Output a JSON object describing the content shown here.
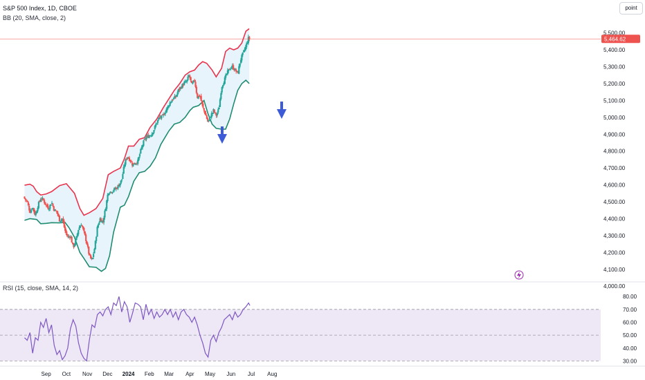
{
  "legend": {
    "main": "S&P 500 Index, 1D, CBOE",
    "bb": "BB (20, SMA, close, 2)",
    "rsi": "RSI (15, close, SMA, 14, 2)"
  },
  "mode_button": "point",
  "colors": {
    "up": "#26a69a",
    "down": "#ef5350",
    "bb_upper": "#e8344e",
    "bb_lower": "#1f8b70",
    "bb_fill": "#e8f4fb",
    "rsi_line": "#7e57c2",
    "rsi_band": "#ede7f6",
    "arrow": "#3d5bd6",
    "price_tag": "#ef5350",
    "bolt": "#9c27b0"
  },
  "chart_data": [
    {
      "type": "candlestick",
      "title": "S&P 500 Index, 1D, CBOE",
      "indicator": "BB (20, SMA, close, 2)",
      "ylim": [
        4050,
        5560
      ],
      "y_ticks": [
        "5,500.00",
        "5,400.00",
        "5,300.00",
        "5,200.00",
        "5,100.00",
        "5,000.00",
        "4,900.00",
        "4,800.00",
        "4,700.00",
        "4,600.00",
        "4,500.00",
        "4,400.00",
        "4,300.00",
        "4,200.00",
        "4,100.00",
        "4,000.00"
      ],
      "y_tick_values": [
        5500,
        5400,
        5300,
        5200,
        5100,
        5000,
        4900,
        4800,
        4700,
        4600,
        4500,
        4400,
        4300,
        4200,
        4100,
        4000
      ],
      "x_ticks": [
        "Sep",
        "Oct",
        "Nov",
        "Dec",
        "2024",
        "Feb",
        "Mar",
        "Apr",
        "May",
        "Jun",
        "Jul",
        "Aug"
      ],
      "x_tick_days": [
        14,
        44,
        75,
        105,
        136,
        167,
        196,
        227,
        257,
        288,
        318,
        349
      ],
      "last_price": "5,464.62",
      "last_price_value": 5464.62,
      "series": [
        {
          "name": "upper",
          "points": [
            [
              -18,
              4598
            ],
            [
              -10,
              4604
            ],
            [
              -5,
              4592
            ],
            [
              0,
              4560
            ],
            [
              6,
              4540
            ],
            [
              14,
              4546
            ],
            [
              22,
              4560
            ],
            [
              34,
              4596
            ],
            [
              44,
              4607
            ],
            [
              56,
              4550
            ],
            [
              64,
              4460
            ],
            [
              70,
              4420
            ],
            [
              78,
              4435
            ],
            [
              88,
              4460
            ],
            [
              98,
              4520
            ],
            [
              106,
              4660
            ],
            [
              114,
              4680
            ],
            [
              124,
              4700
            ],
            [
              130,
              4755
            ],
            [
              136,
              4830
            ],
            [
              144,
              4830
            ],
            [
              152,
              4870
            ],
            [
              160,
              4880
            ],
            [
              168,
              4940
            ],
            [
              178,
              4990
            ],
            [
              188,
              5060
            ],
            [
              196,
              5110
            ],
            [
              204,
              5160
            ],
            [
              212,
              5200
            ],
            [
              220,
              5250
            ],
            [
              227,
              5270
            ],
            [
              234,
              5280
            ],
            [
              240,
              5310
            ],
            [
              246,
              5330
            ],
            [
              252,
              5320
            ],
            [
              260,
              5280
            ],
            [
              266,
              5240
            ],
            [
              274,
              5290
            ],
            [
              280,
              5390
            ],
            [
              286,
              5410
            ],
            [
              292,
              5400
            ],
            [
              298,
              5410
            ],
            [
              304,
              5440
            ],
            [
              310,
              5510
            ],
            [
              315,
              5525
            ]
          ]
        },
        {
          "name": "lower",
          "points": [
            [
              -18,
              4390
            ],
            [
              -10,
              4400
            ],
            [
              0,
              4395
            ],
            [
              6,
              4370
            ],
            [
              14,
              4372
            ],
            [
              22,
              4376
            ],
            [
              34,
              4375
            ],
            [
              42,
              4378
            ],
            [
              48,
              4346
            ],
            [
              56,
              4290
            ],
            [
              64,
              4200
            ],
            [
              70,
              4165
            ],
            [
              78,
              4115
            ],
            [
              88,
              4112
            ],
            [
              96,
              4088
            ],
            [
              102,
              4105
            ],
            [
              108,
              4180
            ],
            [
              114,
              4320
            ],
            [
              124,
              4468
            ],
            [
              130,
              4480
            ],
            [
              136,
              4530
            ],
            [
              144,
              4622
            ],
            [
              152,
              4672
            ],
            [
              160,
              4680
            ],
            [
              168,
              4710
            ],
            [
              176,
              4760
            ],
            [
              184,
              4840
            ],
            [
              190,
              4880
            ],
            [
              196,
              4920
            ],
            [
              204,
              4960
            ],
            [
              212,
              4970
            ],
            [
              220,
              5000
            ],
            [
              227,
              5040
            ],
            [
              232,
              5060
            ],
            [
              240,
              5070
            ],
            [
              248,
              5100
            ],
            [
              254,
              5020
            ],
            [
              260,
              4960
            ],
            [
              266,
              4935
            ],
            [
              274,
              4930
            ],
            [
              280,
              4930
            ],
            [
              286,
              4990
            ],
            [
              292,
              5080
            ],
            [
              298,
              5160
            ],
            [
              304,
              5200
            ],
            [
              310,
              5220
            ],
            [
              315,
              5200
            ]
          ]
        },
        {
          "name": "close",
          "points": [
            [
              -18,
              4520
            ],
            [
              -14,
              4500
            ],
            [
              -10,
              4440
            ],
            [
              -6,
              4470
            ],
            [
              -2,
              4420
            ],
            [
              2,
              4480
            ],
            [
              6,
              4520
            ],
            [
              10,
              4510
            ],
            [
              14,
              4480
            ],
            [
              18,
              4460
            ],
            [
              22,
              4500
            ],
            [
              26,
              4450
            ],
            [
              30,
              4440
            ],
            [
              34,
              4390
            ],
            [
              38,
              4400
            ],
            [
              42,
              4330
            ],
            [
              46,
              4290
            ],
            [
              50,
              4300
            ],
            [
              54,
              4230
            ],
            [
              58,
              4270
            ],
            [
              62,
              4340
            ],
            [
              66,
              4370
            ],
            [
              70,
              4320
            ],
            [
              74,
              4260
            ],
            [
              78,
              4180
            ],
            [
              82,
              4150
            ],
            [
              86,
              4230
            ],
            [
              90,
              4350
            ],
            [
              94,
              4400
            ],
            [
              98,
              4380
            ],
            [
              102,
              4460
            ],
            [
              106,
              4560
            ],
            [
              110,
              4560
            ],
            [
              114,
              4570
            ],
            [
              118,
              4580
            ],
            [
              122,
              4600
            ],
            [
              126,
              4630
            ],
            [
              130,
              4720
            ],
            [
              134,
              4770
            ],
            [
              138,
              4750
            ],
            [
              142,
              4720
            ],
            [
              146,
              4730
            ],
            [
              150,
              4740
            ],
            [
              154,
              4800
            ],
            [
              158,
              4850
            ],
            [
              162,
              4880
            ],
            [
              166,
              4890
            ],
            [
              170,
              4900
            ],
            [
              174,
              4930
            ],
            [
              178,
              4970
            ],
            [
              182,
              5000
            ],
            [
              186,
              5000
            ],
            [
              190,
              5030
            ],
            [
              194,
              5060
            ],
            [
              198,
              5090
            ],
            [
              202,
              5110
            ],
            [
              206,
              5120
            ],
            [
              210,
              5160
            ],
            [
              214,
              5180
            ],
            [
              218,
              5200
            ],
            [
              222,
              5210
            ],
            [
              226,
              5250
            ],
            [
              230,
              5190
            ],
            [
              234,
              5220
            ],
            [
              238,
              5120
            ],
            [
              242,
              5130
            ],
            [
              246,
              5060
            ],
            [
              250,
              5020
            ],
            [
              254,
              4970
            ],
            [
              258,
              5010
            ],
            [
              262,
              5040
            ],
            [
              266,
              5010
            ],
            [
              270,
              5050
            ],
            [
              274,
              5180
            ],
            [
              278,
              5220
            ],
            [
              282,
              5260
            ],
            [
              286,
              5290
            ],
            [
              290,
              5300
            ],
            [
              294,
              5280
            ],
            [
              298,
              5260
            ],
            [
              302,
              5340
            ],
            [
              306,
              5380
            ],
            [
              310,
              5420
            ],
            [
              314,
              5470
            ],
            [
              316,
              5460
            ]
          ]
        }
      ]
    },
    {
      "type": "line",
      "title": "RSI (15, close, SMA, 14, 2)",
      "ylim": [
        27,
        86
      ],
      "y_ticks": [
        "80.00",
        "70.00",
        "60.00",
        "50.00",
        "40.00",
        "30.00"
      ],
      "y_tick_values": [
        80,
        70,
        60,
        50,
        40,
        30
      ],
      "band": [
        30,
        70
      ],
      "midline": 50,
      "series": [
        {
          "name": "RSI",
          "points": [
            [
              -18,
              48
            ],
            [
              -14,
              46
            ],
            [
              -10,
              52
            ],
            [
              -6,
              36
            ],
            [
              -2,
              48
            ],
            [
              2,
              46
            ],
            [
              6,
              60
            ],
            [
              10,
              56
            ],
            [
              14,
              63
            ],
            [
              18,
              52
            ],
            [
              22,
              58
            ],
            [
              26,
              42
            ],
            [
              30,
              35
            ],
            [
              34,
              38
            ],
            [
              38,
              31
            ],
            [
              42,
              34
            ],
            [
              46,
              40
            ],
            [
              50,
              55
            ],
            [
              54,
              62
            ],
            [
              58,
              57
            ],
            [
              62,
              44
            ],
            [
              66,
              36
            ],
            [
              70,
              32
            ],
            [
              74,
              30
            ],
            [
              78,
              46
            ],
            [
              82,
              58
            ],
            [
              86,
              56
            ],
            [
              90,
              66
            ],
            [
              94,
              68
            ],
            [
              98,
              65
            ],
            [
              102,
              70
            ],
            [
              106,
              72
            ],
            [
              110,
              66
            ],
            [
              114,
              75
            ],
            [
              118,
              73
            ],
            [
              122,
              80
            ],
            [
              126,
              68
            ],
            [
              130,
              76
            ],
            [
              134,
              72
            ],
            [
              138,
              60
            ],
            [
              142,
              67
            ],
            [
              146,
              75
            ],
            [
              150,
              74
            ],
            [
              154,
              72
            ],
            [
              158,
              62
            ],
            [
              162,
              74
            ],
            [
              166,
              66
            ],
            [
              170,
              70
            ],
            [
              174,
              63
            ],
            [
              178,
              68
            ],
            [
              182,
              64
            ],
            [
              186,
              66
            ],
            [
              190,
              70
            ],
            [
              194,
              66
            ],
            [
              198,
              70
            ],
            [
              202,
              64
            ],
            [
              206,
              68
            ],
            [
              210,
              62
            ],
            [
              214,
              68
            ],
            [
              218,
              70
            ],
            [
              222,
              66
            ],
            [
              226,
              64
            ],
            [
              230,
              60
            ],
            [
              234,
              64
            ],
            [
              238,
              58
            ],
            [
              242,
              50
            ],
            [
              246,
              44
            ],
            [
              250,
              36
            ],
            [
              254,
              33
            ],
            [
              258,
              46
            ],
            [
              262,
              50
            ],
            [
              266,
              45
            ],
            [
              270,
              52
            ],
            [
              274,
              56
            ],
            [
              278,
              62
            ],
            [
              282,
              64
            ],
            [
              286,
              66
            ],
            [
              290,
              62
            ],
            [
              294,
              68
            ],
            [
              298,
              64
            ],
            [
              302,
              66
            ],
            [
              306,
              70
            ],
            [
              310,
              72
            ],
            [
              314,
              75
            ],
            [
              316,
              73
            ]
          ]
        }
      ]
    }
  ]
}
